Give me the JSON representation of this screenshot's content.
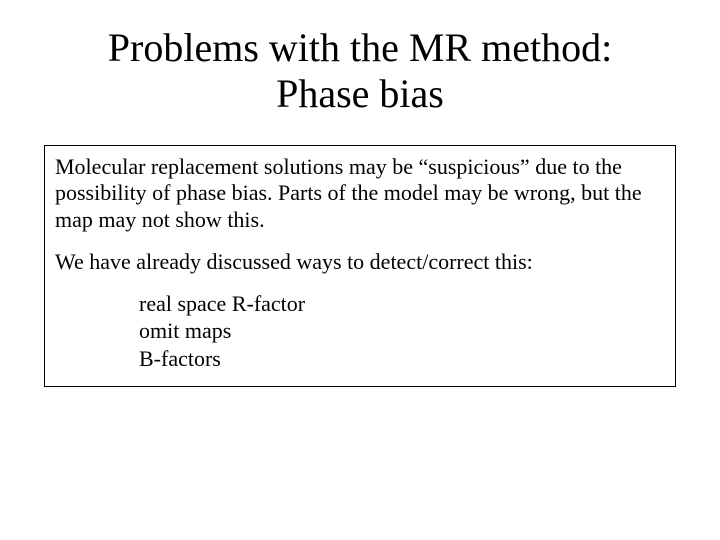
{
  "title": {
    "line1": "Problems with the MR method:",
    "line2": "Phase bias"
  },
  "paragraphs": {
    "p1": "Molecular replacement solutions may be “suspicious” due to the possibility of phase bias.  Parts of the model may be wrong, but the map may not show this.",
    "p2": "We have already discussed ways to detect/correct this:"
  },
  "list": {
    "item1": "real space R-factor",
    "item2": "omit maps",
    "item3": "B-factors"
  },
  "colors": {
    "background": "#ffffff",
    "text": "#000000",
    "border": "#000000"
  },
  "typography": {
    "title_fontsize": 40,
    "body_fontsize": 22,
    "font_family": "Times New Roman"
  }
}
